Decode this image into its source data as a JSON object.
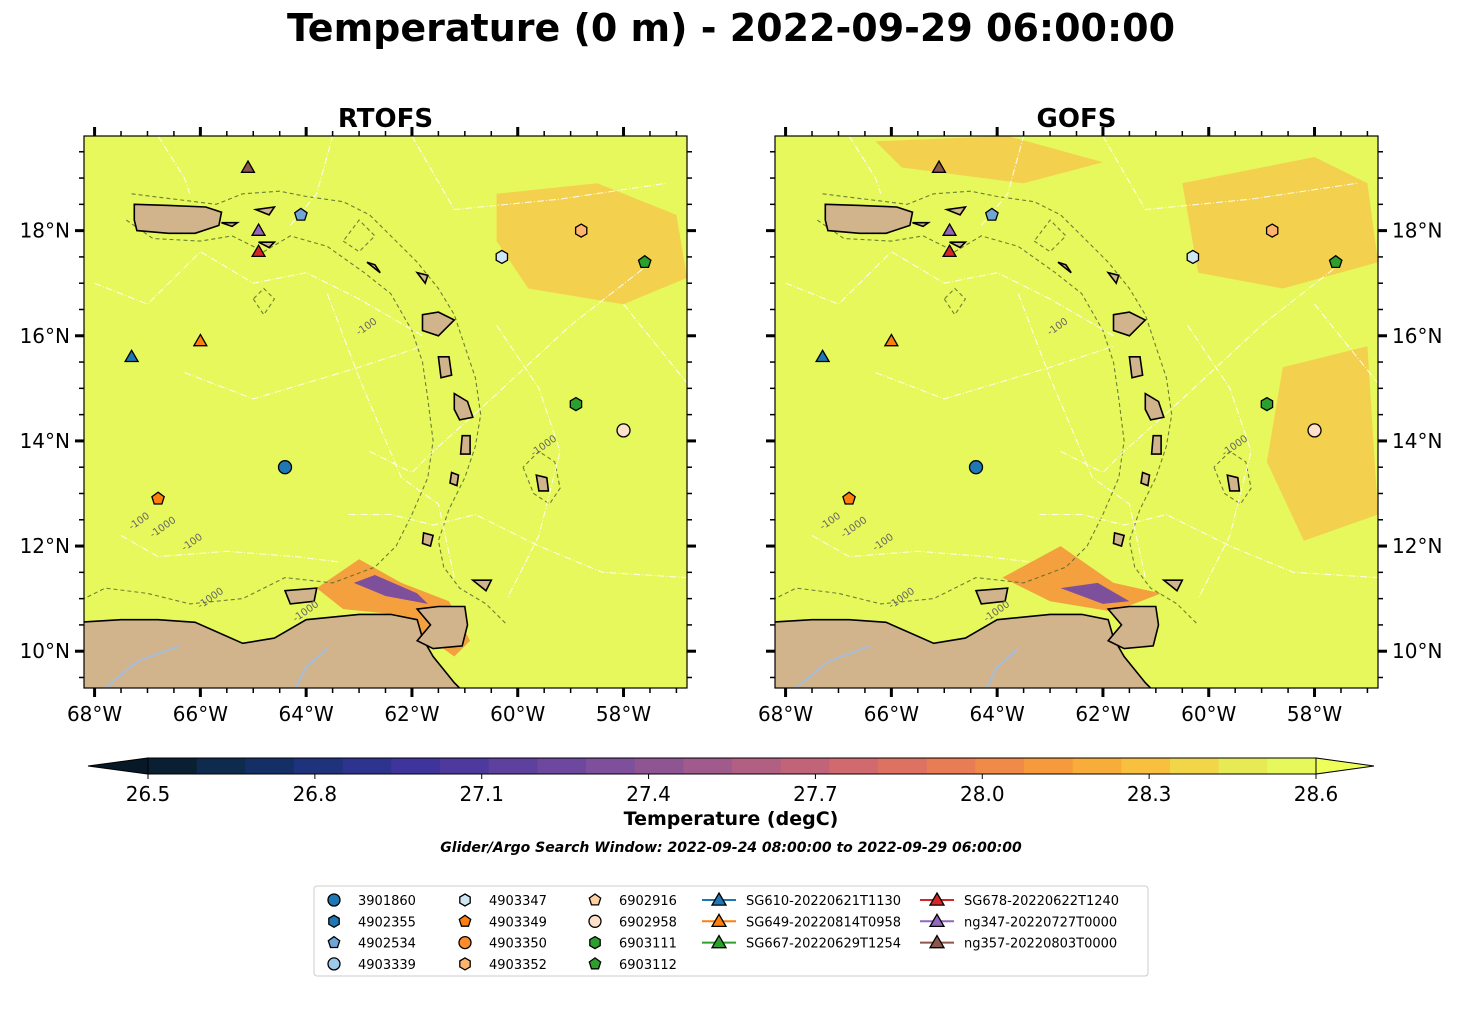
{
  "title": "Temperature (0 m) - 2022-09-29 06:00:00",
  "panels": [
    {
      "title": "RTOFS"
    },
    {
      "title": "GOFS"
    }
  ],
  "axes": {
    "x_ticks": [
      {
        "value": -68,
        "label": "68°W"
      },
      {
        "value": -66,
        "label": "66°W"
      },
      {
        "value": -64,
        "label": "64°W"
      },
      {
        "value": -62,
        "label": "62°W"
      },
      {
        "value": -60,
        "label": "60°W"
      },
      {
        "value": -58,
        "label": "58°W"
      }
    ],
    "y_ticks": [
      {
        "value": 10,
        "label": "10°N"
      },
      {
        "value": 12,
        "label": "12°N"
      },
      {
        "value": 14,
        "label": "14°N"
      },
      {
        "value": 16,
        "label": "16°N"
      },
      {
        "value": 18,
        "label": "18°N"
      }
    ],
    "xlim": [
      -68.2,
      -56.8
    ],
    "ylim": [
      9.3,
      19.8
    ]
  },
  "colorbar": {
    "label": "Temperature (degC)",
    "min": 26.5,
    "max": 28.6,
    "ticks": [
      "26.5",
      "26.8",
      "27.1",
      "27.4",
      "27.7",
      "28.0",
      "28.3",
      "28.6"
    ],
    "colors": [
      "#0b1f33",
      "#0e2a4d",
      "#142f66",
      "#1f327c",
      "#2d338f",
      "#3e349c",
      "#4e3a9e",
      "#5e409f",
      "#6e479e",
      "#7e4f9b",
      "#8f5593",
      "#a05a8b",
      "#b15f83",
      "#c1647a",
      "#d06a6e",
      "#dd7262",
      "#e87c55",
      "#f08a48",
      "#f59b3e",
      "#f8ac3a",
      "#f9bf3f",
      "#f2d64a",
      "#e6ea55",
      "#e6f85b"
    ]
  },
  "search_window": "Glider/Argo Search Window: 2022-09-24 08:00:00 to 2022-09-29 06:00:00",
  "contour_labels": [
    "-100",
    "-1000"
  ],
  "legend": [
    {
      "label": "3901860",
      "marker": "circle",
      "color": "#1f77b4"
    },
    {
      "label": "4902355",
      "marker": "hexagon",
      "color": "#1f77b4"
    },
    {
      "label": "4902534",
      "marker": "pentagon",
      "color": "#6fa6d6"
    },
    {
      "label": "4903339",
      "marker": "circle",
      "color": "#9ecae9"
    },
    {
      "label": "4903347",
      "marker": "hexagon",
      "color": "#cfe6f5"
    },
    {
      "label": "4903349",
      "marker": "pentagon",
      "color": "#ff7f0e"
    },
    {
      "label": "4903350",
      "marker": "circle",
      "color": "#ff8c2a"
    },
    {
      "label": "4903352",
      "marker": "hexagon",
      "color": "#ffb36b"
    },
    {
      "label": "6902916",
      "marker": "pentagon",
      "color": "#ffd0a0"
    },
    {
      "label": "6902958",
      "marker": "circle",
      "color": "#ffe0c8"
    },
    {
      "label": "6903111",
      "marker": "hexagon",
      "color": "#2ca02c"
    },
    {
      "label": "6903112",
      "marker": "pentagon",
      "color": "#2ca02c"
    },
    {
      "label": "SG610-20220621T1130",
      "marker": "triangle",
      "color": "#1f77b4",
      "line": true
    },
    {
      "label": "SG649-20220814T0958",
      "marker": "triangle",
      "color": "#ff7f0e",
      "line": true
    },
    {
      "label": "SG667-20220629T1254",
      "marker": "triangle",
      "color": "#2ca02c",
      "line": true
    },
    {
      "label": "SG678-20220622T1240",
      "marker": "triangle",
      "color": "#d62728",
      "line": true
    },
    {
      "label": "ng347-20220727T0000",
      "marker": "triangle",
      "color": "#9467bd",
      "line": true
    },
    {
      "label": "ng357-20220803T0000",
      "marker": "triangle",
      "color": "#8c564b",
      "line": true
    }
  ],
  "markers": [
    {
      "id": "3901860",
      "lon": -64.4,
      "lat": 13.5,
      "marker": "circle",
      "color": "#1f77b4"
    },
    {
      "id": "4903352",
      "lon": -58.8,
      "lat": 18.0,
      "marker": "hexagon",
      "color": "#ffb36b"
    },
    {
      "id": "4903347",
      "lon": -60.3,
      "lat": 17.5,
      "marker": "hexagon",
      "color": "#cfe6f5"
    },
    {
      "id": "6903112",
      "lon": -57.6,
      "lat": 17.4,
      "marker": "pentagon",
      "color": "#2ca02c"
    },
    {
      "id": "6903111",
      "lon": -58.9,
      "lat": 14.7,
      "marker": "hexagon",
      "color": "#2ca02c"
    },
    {
      "id": "6902958",
      "lon": -58.0,
      "lat": 14.2,
      "marker": "circle",
      "color": "#ffe0c8"
    },
    {
      "id": "4903349",
      "lon": -66.8,
      "lat": 12.9,
      "marker": "pentagon",
      "color": "#ff7f0e"
    },
    {
      "id": "4902534",
      "lon": -64.1,
      "lat": 18.3,
      "marker": "pentagon",
      "color": "#6fa6d6"
    },
    {
      "id": "SG610-20220621T1130",
      "lon": -67.3,
      "lat": 15.6,
      "marker": "triangle",
      "color": "#1f77b4"
    },
    {
      "id": "SG649-20220814T0958",
      "lon": -66.0,
      "lat": 15.9,
      "marker": "triangle",
      "color": "#ff7f0e"
    },
    {
      "id": "SG678-20220622T1240",
      "lon": -64.9,
      "lat": 17.6,
      "marker": "triangle",
      "color": "#d62728"
    },
    {
      "id": "ng347-20220727T0000",
      "lon": -64.9,
      "lat": 18.0,
      "marker": "triangle",
      "color": "#9467bd"
    },
    {
      "id": "ng357-20220803T0000",
      "lon": -65.1,
      "lat": 19.2,
      "marker": "triangle",
      "color": "#8c564b"
    }
  ],
  "map_colors": {
    "sea": "#e6f85b",
    "land": "#d2b48c",
    "warm": "#f7c34a",
    "river": "#a6bddb"
  }
}
